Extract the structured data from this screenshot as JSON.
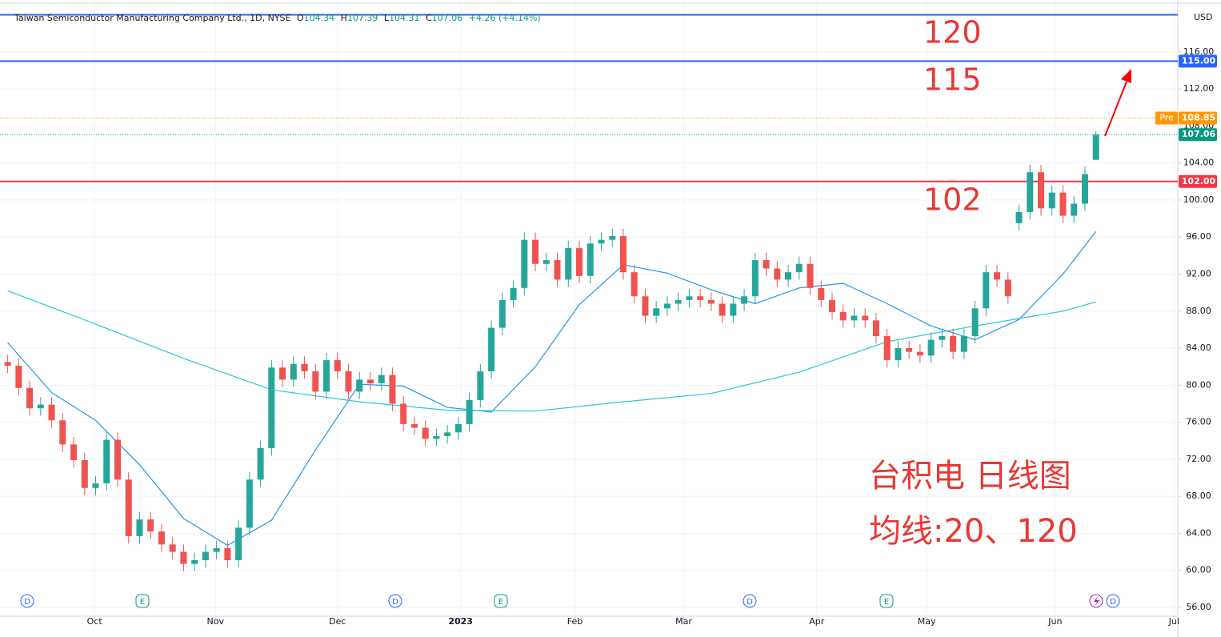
{
  "chart_data": {
    "type": "candlestick",
    "header": {
      "title": "Taiwan Semiconductor Manufacturing Company Ltd., 1D, NYSE",
      "o": "O",
      "h": "H",
      "l": "L",
      "c": "C",
      "change": "+4.26 (+4.14%)"
    },
    "currency": "USD",
    "categories": [
      null,
      null,
      null,
      null,
      null,
      null,
      null,
      null,
      null,
      null,
      null,
      null,
      null,
      null,
      null,
      null,
      null,
      null,
      null,
      null,
      null,
      null,
      null,
      null,
      null,
      null,
      null,
      null,
      null,
      null,
      null,
      null,
      null,
      null,
      null,
      null,
      null,
      null,
      null,
      null,
      null,
      null,
      null,
      null,
      null,
      null,
      null,
      null,
      null,
      null,
      null,
      null,
      null,
      null,
      null,
      null,
      null,
      null,
      null,
      null,
      null,
      null,
      null,
      null,
      null,
      null,
      null,
      null,
      null,
      null,
      null,
      null,
      null,
      null,
      null,
      null,
      null,
      null,
      null,
      null,
      null,
      null,
      null,
      null,
      null,
      null,
      null,
      null,
      null,
      null,
      null,
      null,
      null,
      null,
      null,
      null,
      null,
      null,
      null,
      null
    ],
    "open": [
      82.5,
      82.1,
      79.7,
      77.5,
      77.9,
      76.2,
      73.6,
      71.9,
      68.9,
      69.4,
      74.1,
      69.8,
      63.7,
      65.5,
      64.2,
      62.8,
      62.0,
      60.7,
      61.1,
      62.0,
      62.4,
      61.1,
      64.6,
      69.8,
      73.2,
      81.9,
      80.6,
      82.3,
      81.5,
      79.3,
      82.7,
      81.5,
      79.3,
      80.6,
      80.2,
      81.1,
      78.0,
      75.8,
      75.4,
      74.2,
      74.5,
      74.9,
      75.8,
      78.4,
      81.5,
      86.2,
      89.2,
      90.5,
      95.7,
      93.1,
      93.5,
      91.4,
      94.8,
      91.8,
      95.3,
      95.7,
      96.1,
      92.2,
      89.6,
      87.5,
      88.3,
      88.8,
      89.2,
      89.6,
      89.2,
      88.8,
      87.5,
      88.8,
      89.6,
      93.5,
      92.6,
      91.4,
      92.2,
      93.1,
      90.5,
      89.2,
      87.9,
      87.0,
      87.5,
      87.0,
      85.3,
      82.7,
      84.0,
      83.6,
      83.2,
      84.9,
      85.3,
      83.6,
      85.3,
      88.3,
      92.2,
      91.4,
      97.5,
      98.7,
      103.0,
      99.1,
      100.8,
      98.3,
      99.6,
      104.34
    ],
    "high": [
      83.3,
      82.9,
      80.5,
      78.7,
      78.7,
      77.0,
      74.4,
      72.7,
      70.2,
      74.9,
      74.9,
      70.6,
      66.3,
      66.3,
      65.0,
      63.6,
      62.8,
      61.9,
      62.8,
      63.2,
      63.2,
      65.4,
      70.6,
      74.0,
      82.7,
      82.7,
      83.1,
      83.1,
      82.3,
      83.5,
      83.5,
      82.3,
      81.4,
      81.4,
      81.9,
      81.9,
      78.8,
      76.6,
      76.2,
      75.3,
      75.7,
      76.6,
      79.2,
      82.3,
      87.0,
      90.0,
      91.3,
      96.5,
      96.5,
      94.3,
      94.3,
      95.6,
      95.6,
      96.1,
      96.5,
      96.9,
      96.9,
      93.0,
      90.4,
      89.1,
      89.6,
      90.0,
      90.4,
      90.4,
      90.0,
      89.6,
      89.6,
      90.4,
      94.3,
      94.3,
      93.4,
      93.0,
      93.9,
      93.9,
      91.3,
      90.0,
      88.7,
      88.3,
      88.3,
      87.8,
      86.1,
      84.8,
      84.8,
      84.4,
      85.7,
      86.1,
      86.1,
      86.1,
      89.1,
      93.0,
      93.0,
      92.2,
      99.5,
      103.8,
      103.8,
      101.6,
      101.6,
      100.4,
      103.6,
      107.39
    ],
    "low": [
      81.3,
      78.9,
      76.7,
      76.7,
      75.4,
      72.8,
      71.1,
      68.1,
      68.1,
      68.6,
      69.0,
      62.9,
      62.9,
      63.4,
      62.0,
      61.2,
      59.9,
      59.9,
      60.3,
      61.2,
      60.3,
      60.3,
      63.8,
      69.0,
      72.4,
      79.8,
      79.8,
      80.7,
      78.5,
      78.5,
      80.7,
      78.5,
      78.5,
      79.4,
      79.4,
      77.2,
      75.0,
      74.6,
      73.4,
      73.4,
      73.7,
      74.1,
      75.0,
      77.6,
      80.7,
      85.4,
      88.4,
      89.7,
      92.3,
      92.3,
      90.6,
      90.6,
      91.0,
      91.0,
      94.5,
      94.9,
      91.4,
      88.8,
      86.7,
      86.7,
      87.5,
      88.0,
      88.4,
      88.4,
      88.0,
      86.7,
      86.7,
      88.0,
      88.8,
      91.8,
      90.6,
      90.6,
      91.4,
      89.7,
      88.4,
      87.1,
      86.2,
      86.2,
      86.2,
      84.5,
      81.9,
      81.9,
      82.8,
      82.4,
      82.4,
      84.1,
      82.8,
      82.8,
      84.5,
      87.5,
      90.6,
      88.8,
      96.7,
      97.9,
      98.3,
      98.3,
      97.5,
      97.5,
      98.8,
      104.31
    ],
    "close": [
      82.1,
      79.7,
      77.5,
      77.9,
      76.2,
      73.6,
      71.9,
      68.9,
      69.4,
      74.1,
      69.8,
      63.7,
      65.5,
      64.2,
      62.8,
      62.0,
      60.7,
      61.1,
      62.0,
      62.4,
      61.1,
      64.6,
      69.8,
      73.2,
      81.9,
      80.6,
      82.3,
      81.5,
      79.3,
      82.7,
      81.5,
      79.3,
      80.6,
      80.2,
      81.1,
      78.0,
      75.8,
      75.4,
      74.2,
      74.5,
      74.9,
      75.8,
      78.4,
      81.5,
      86.2,
      89.2,
      90.5,
      95.7,
      93.1,
      93.5,
      91.4,
      94.8,
      91.8,
      95.3,
      95.7,
      96.1,
      92.2,
      89.6,
      87.5,
      88.3,
      88.8,
      89.2,
      89.6,
      89.2,
      88.8,
      87.5,
      88.8,
      89.6,
      93.5,
      92.6,
      91.4,
      92.2,
      93.1,
      90.5,
      89.2,
      87.9,
      87.0,
      87.5,
      87.0,
      85.3,
      82.7,
      84.0,
      83.6,
      83.2,
      84.9,
      85.3,
      83.6,
      85.3,
      88.3,
      92.2,
      91.4,
      89.6,
      98.7,
      103.0,
      99.1,
      100.8,
      98.3,
      99.6,
      102.8,
      107.06
    ],
    "up_color": "#26a69a",
    "down_color": "#ef5350",
    "series": [
      {
        "color": "#2196f3",
        "x": [
          0,
          4,
          8,
          12,
          16,
          20,
          24,
          28,
          32,
          36,
          40,
          44,
          48,
          52,
          56,
          60,
          64,
          68,
          72,
          76,
          80,
          84,
          88,
          92,
          96,
          99
        ],
        "values": [
          84.6,
          79.2,
          76.2,
          71.4,
          65.6,
          62.7,
          65.4,
          73.0,
          80.1,
          79.9,
          77.6,
          77.1,
          82.0,
          88.7,
          93.0,
          92.1,
          90.3,
          88.8,
          90.5,
          91.0,
          88.8,
          86.4,
          84.9,
          87.1,
          92.0,
          96.6
        ]
      },
      {
        "color": "#26c6da",
        "x": [
          0,
          8,
          16,
          24,
          32,
          40,
          48,
          56,
          64,
          72,
          80,
          88,
          96,
          99
        ],
        "values": [
          90.2,
          86.6,
          82.9,
          79.5,
          78.2,
          77.3,
          77.2,
          78.2,
          79.1,
          81.4,
          84.7,
          86.4,
          88.0,
          89.0
        ]
      }
    ],
    "xlim": [
      -0.7,
      106.3
    ],
    "xticks": [
      {
        "value": 7.9,
        "label": "Oct"
      },
      {
        "value": 18.9,
        "label": "Nov"
      },
      {
        "value": 30.0,
        "label": "Dec"
      },
      {
        "value": 41.2,
        "label": "2023"
      },
      {
        "value": 51.6,
        "label": "Feb"
      },
      {
        "value": 61.5,
        "label": "Mar"
      },
      {
        "value": 73.6,
        "label": "Apr"
      },
      {
        "value": 83.6,
        "label": "May"
      },
      {
        "value": 95.3,
        "label": "Jun"
      },
      {
        "value": 106.1,
        "label": "Jul"
      }
    ],
    "ylim": [
      55.05,
      121.6
    ],
    "yticks": [
      {
        "value": 56,
        "label": "56.00"
      },
      {
        "value": 60,
        "label": "60.00"
      },
      {
        "value": 64,
        "label": "64.00"
      },
      {
        "value": 68,
        "label": "68.00"
      },
      {
        "value": 72,
        "label": "72.00"
      },
      {
        "value": 76,
        "label": "76.00"
      },
      {
        "value": 80,
        "label": "80.00"
      },
      {
        "value": 84,
        "label": "84.00"
      },
      {
        "value": 88,
        "label": "88.00"
      },
      {
        "value": 92,
        "label": "92.00"
      },
      {
        "value": 96,
        "label": "96.00"
      },
      {
        "value": 100,
        "label": "100.00"
      },
      {
        "value": 104,
        "label": "104.00"
      },
      {
        "value": 108,
        "label": "108.00"
      },
      {
        "value": 112,
        "label": "112.00"
      },
      {
        "value": 116,
        "label": "116.00"
      }
    ],
    "grid": true,
    "levels": [
      {
        "value": 120,
        "color": "#2962ff"
      },
      {
        "value": 115,
        "label": "115.00",
        "color": "#2962ff"
      },
      {
        "value": 102,
        "label": "102.00",
        "color": "#f23645"
      }
    ],
    "pre_market": {
      "label": "Pre",
      "value": 108.85,
      "color": "#ff9800"
    },
    "last_color": "#089981",
    "annotations": [
      "120",
      "115",
      "102",
      "台积电 日线图",
      "均线:20、120"
    ],
    "events": [
      "D",
      "E",
      "D",
      "E",
      "D",
      "E",
      "D"
    ]
  }
}
